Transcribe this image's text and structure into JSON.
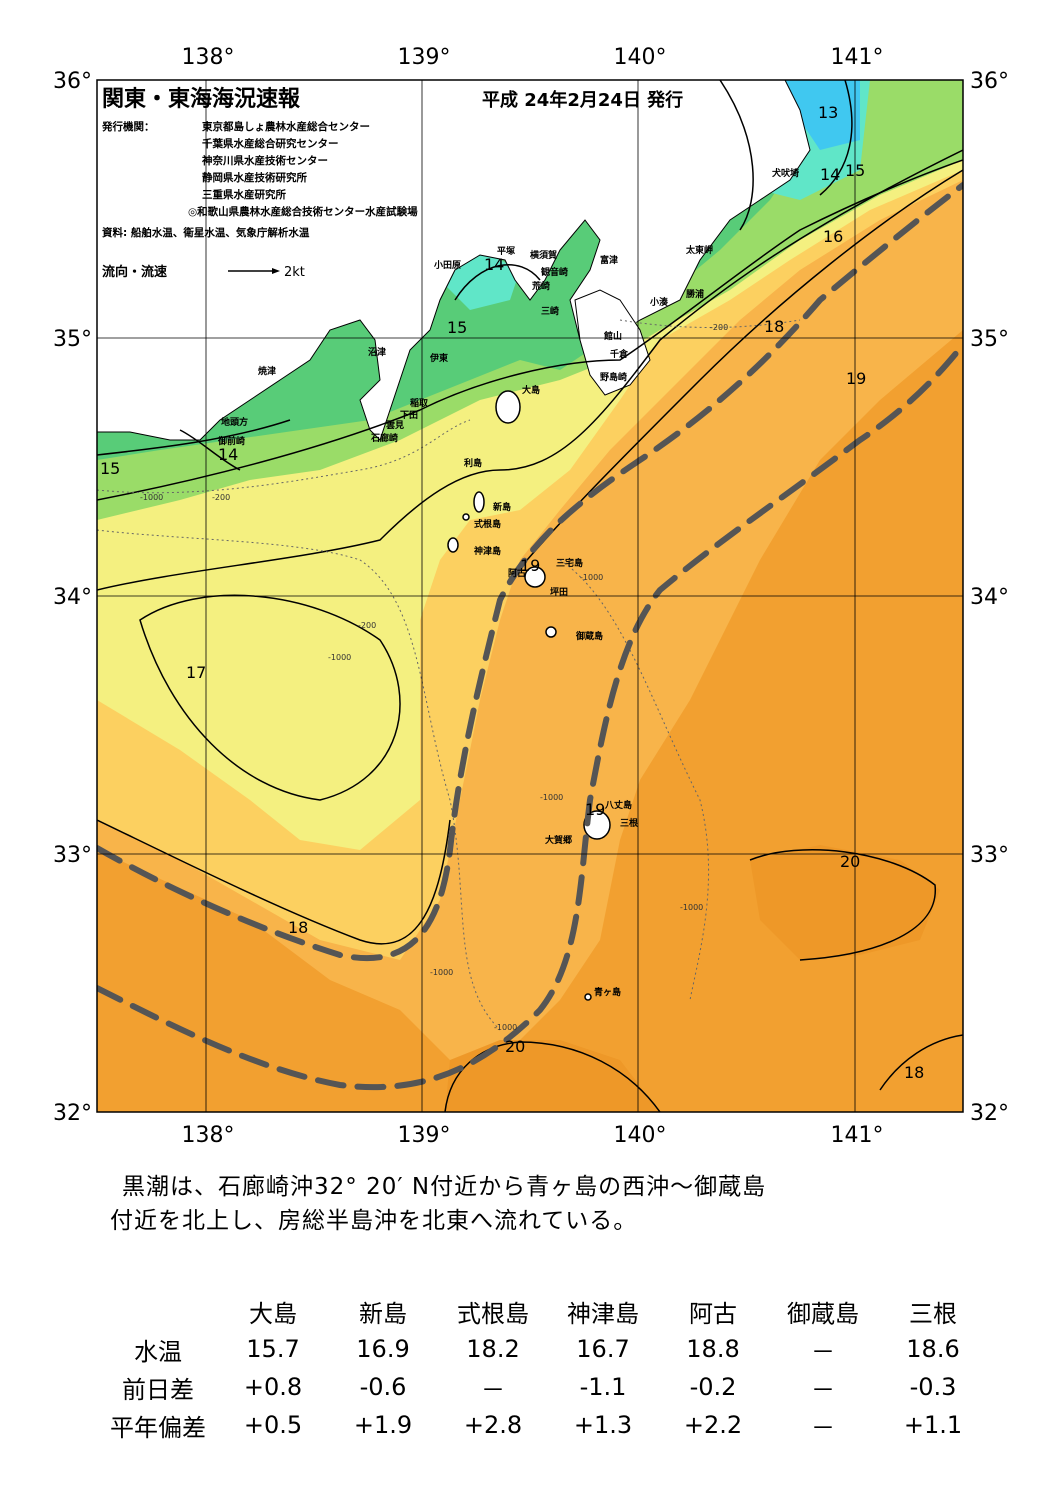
{
  "header": {
    "title": "関東・東海海況速報",
    "date": "平成 24年2月24日 発行",
    "issuer_label": "発行機関：",
    "issuers": [
      "東京都島しょ農林水産総合センター",
      "千葉県水産総合研究センター",
      "神奈川県水産技術センター",
      "静岡県水産技術研究所",
      "三重県水産研究所",
      "◎和歌山県農林水産総合技術センター水産試験場"
    ],
    "source": "資料: 船舶水温、衛星水温、気象庁解析水温",
    "flow_label": "流向・流速",
    "flow_scale": "2kt"
  },
  "axes": {
    "lon_labels": [
      "138°",
      "139°",
      "140°",
      "141°"
    ],
    "lat_labels": [
      "36°",
      "35°",
      "34°",
      "33°",
      "32°"
    ]
  },
  "places": {
    "inubosaki": "犬吠埼",
    "taitomisaki": "太東岬",
    "katsuura": "勝浦",
    "kominato": "小湊",
    "tomiura": "富津",
    "yokosuka": "横須賀",
    "kannonzaki": "観音崎",
    "arasaki": "荒崎",
    "misaki": "三崎",
    "hiratsuka": "平塚",
    "odawara": "小田原",
    "tateyama": "館山",
    "chikura": "千倉",
    "nojimazaki": "野島崎",
    "numazu": "沼津",
    "ito": "伊東",
    "inatori": "稲取",
    "shimoda": "下田",
    "kumomi": "雲見",
    "irozaki": "石廊崎",
    "yaizu": "焼津",
    "jitogata": "地頭方",
    "omaezaki": "御前崎",
    "oshima": "大島",
    "toshima": "利島",
    "niijima": "新島",
    "shikinejima": "式根島",
    "kozushima": "神津島",
    "miyakejima": "三宅島",
    "ako": "阿古",
    "tsubota": "坪田",
    "mikurajima": "御蔵島",
    "hachijojima": "八丈島",
    "sanne": "三根",
    "okago": "大賀郷",
    "aogashima": "青ヶ島"
  },
  "isotherm_labels": [
    "13",
    "14",
    "15",
    "16",
    "14",
    "15",
    "15",
    "14",
    "18",
    "19",
    "17",
    "19",
    "19",
    "18",
    "20",
    "20",
    "18"
  ],
  "depth_labels": [
    "-200",
    "-1000"
  ],
  "summary": [
    "黒潮は、石廊崎沖32° 20′ N付近から青ヶ島の西沖～御蔵島",
    "付近を北上し、房総半島沖を北東へ流れている。"
  ],
  "table": {
    "columns": [
      "大島",
      "新島",
      "式根島",
      "神津島",
      "阿古",
      "御蔵島",
      "三根"
    ],
    "rows": [
      {
        "label": "水温",
        "values": [
          "15.7",
          "16.9",
          "18.2",
          "16.7",
          "18.8",
          "－",
          "18.6"
        ]
      },
      {
        "label": "前日差",
        "values": [
          "+0.8",
          "-0.6",
          "－",
          "-1.1",
          "-0.2",
          "－",
          "-0.3"
        ]
      },
      {
        "label": "平年偏差",
        "values": [
          "+0.5",
          "+1.9",
          "+2.8",
          "+1.3",
          "+2.2",
          "－",
          "+1.1"
        ]
      }
    ]
  },
  "colors": {
    "c13": "#40c8f0",
    "c14": "#60e6c8",
    "c15": "#58cc78",
    "c16": "#9adc68",
    "c17": "#f4f080",
    "c18": "#fcd060",
    "c19": "#f8b44a",
    "c20": "#f2a030",
    "kuroshio": "#555555"
  }
}
